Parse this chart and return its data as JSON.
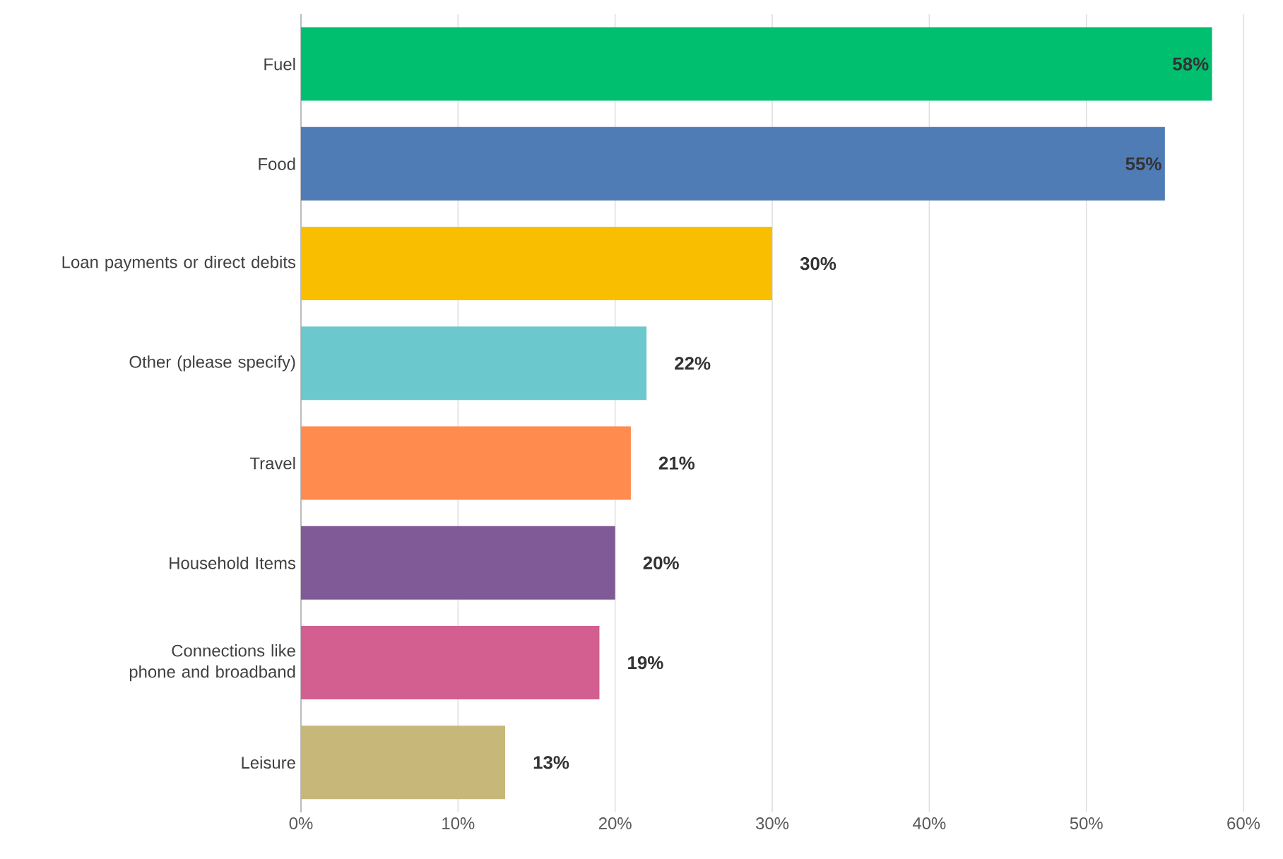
{
  "chart_data": {
    "type": "bar",
    "orientation": "horizontal",
    "categories": [
      "Fuel",
      "Food",
      "Loan payments or direct debits",
      "Other (please specify)",
      "Travel",
      "Household Items",
      "Connections like phone and broadband",
      "Leisure"
    ],
    "values": [
      58,
      55,
      30,
      22,
      21,
      20,
      19,
      13
    ],
    "value_labels": [
      "58%",
      "55%",
      "30%",
      "22%",
      "21%",
      "20%",
      "19%",
      "13%"
    ],
    "colors": [
      "#00bf6f",
      "#507cb6",
      "#f9be00",
      "#6bc8cd",
      "#ff8b4f",
      "#7f5a96",
      "#d25f90",
      "#c7b879"
    ],
    "xlim": [
      0,
      60
    ],
    "xticks": [
      {
        "value": 0,
        "label": "0%"
      },
      {
        "value": 10,
        "label": "10%"
      },
      {
        "value": 20,
        "label": "20%"
      },
      {
        "value": 30,
        "label": "30%"
      },
      {
        "value": 40,
        "label": "40%"
      },
      {
        "value": 50,
        "label": "50%"
      },
      {
        "value": 60,
        "label": "60%"
      }
    ],
    "grid": "x"
  }
}
